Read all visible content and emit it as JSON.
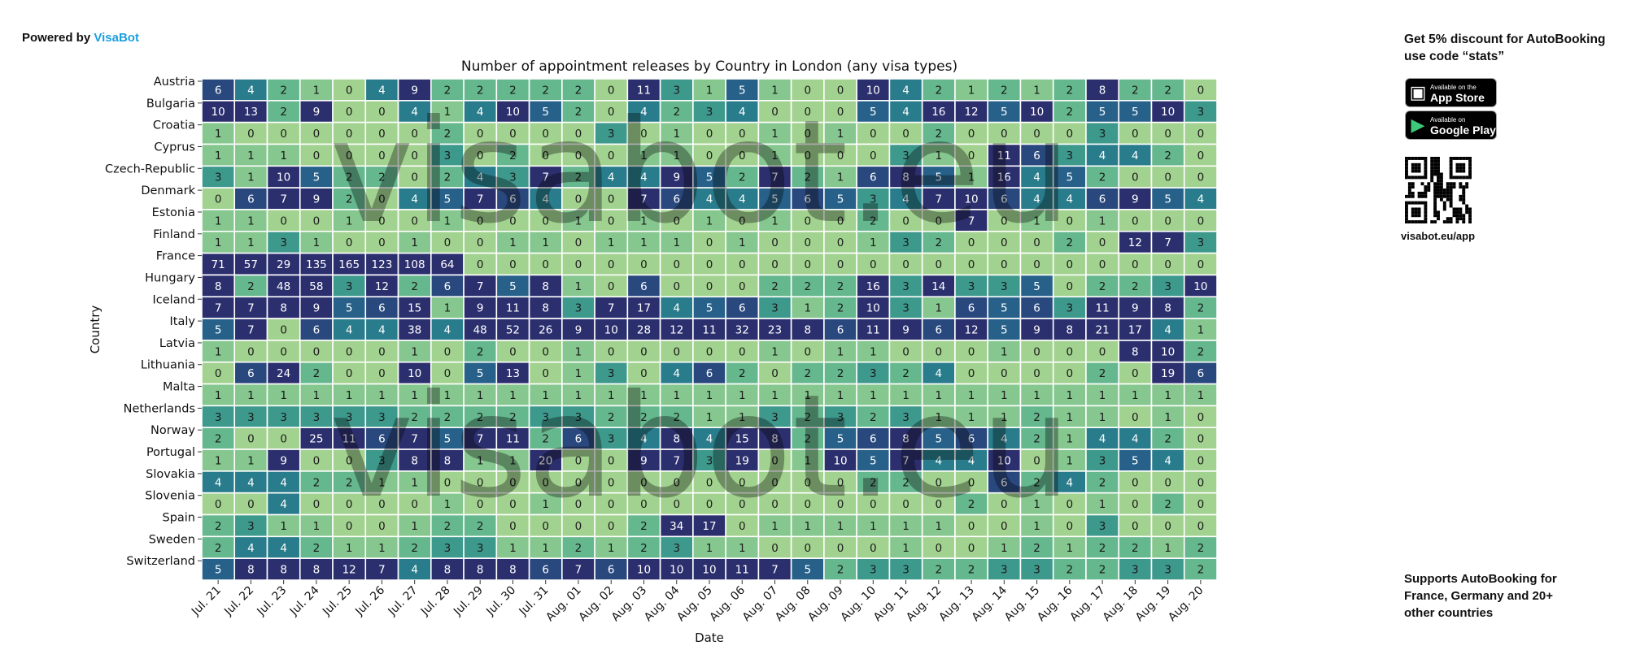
{
  "header": {
    "powered_prefix": "Powered by",
    "powered_brand": "VisaBot"
  },
  "watermark": "visabot.eu",
  "promo": {
    "line1": "Get 5% discount for AutoBooking",
    "line2": "use code “stats”",
    "appstore_small": "Available on the",
    "appstore_big": "App Store",
    "googleplay_small": "Available on",
    "googleplay_big": "Google Play",
    "qr_caption": "visabot.eu/app",
    "support_text": "Supports AutoBooking for France, Germany and 20+ other countries"
  },
  "chart_data": {
    "type": "heatmap",
    "title": "Number of appointment releases by Country in London (any visa types)",
    "xlabel": "Date",
    "ylabel": "Country",
    "colorbar": {
      "min": 0,
      "max": 7,
      "ticks": [
        0,
        1,
        2,
        3,
        4,
        5,
        6,
        7
      ]
    },
    "colors": {
      "low": "#a2d28f",
      "mid": "#2a8a8c",
      "high": "#2c2f6e"
    },
    "x": [
      "Jul. 21",
      "Jul. 22",
      "Jul. 23",
      "Jul. 24",
      "Jul. 25",
      "Jul. 26",
      "Jul. 27",
      "Jul. 28",
      "Jul. 29",
      "Jul. 30",
      "Jul. 31",
      "Aug. 01",
      "Aug. 02",
      "Aug. 03",
      "Aug. 04",
      "Aug. 05",
      "Aug. 06",
      "Aug. 07",
      "Aug. 08",
      "Aug. 09",
      "Aug. 10",
      "Aug. 11",
      "Aug. 12",
      "Aug. 13",
      "Aug. 14",
      "Aug. 15",
      "Aug. 16",
      "Aug. 17",
      "Aug. 18",
      "Aug. 19",
      "Aug. 20"
    ],
    "y": [
      "Austria",
      "Bulgaria",
      "Croatia",
      "Cyprus",
      "Czech-Republic",
      "Denmark",
      "Estonia",
      "Finland",
      "France",
      "Hungary",
      "Iceland",
      "Italy",
      "Latvia",
      "Lithuania",
      "Malta",
      "Netherlands",
      "Norway",
      "Portugal",
      "Slovakia",
      "Slovenia",
      "Spain",
      "Sweden",
      "Switzerland"
    ],
    "values": [
      [
        6,
        4,
        2,
        1,
        0,
        4,
        9,
        2,
        2,
        2,
        2,
        2,
        0,
        11,
        3,
        1,
        5,
        1,
        0,
        0,
        10,
        4,
        2,
        1,
        2,
        1,
        2,
        8,
        2,
        2,
        0
      ],
      [
        10,
        13,
        2,
        9,
        0,
        0,
        4,
        1,
        4,
        10,
        5,
        2,
        0,
        4,
        2,
        3,
        4,
        0,
        0,
        0,
        5,
        4,
        16,
        12,
        5,
        10,
        2,
        5,
        5,
        10,
        3
      ],
      [
        1,
        0,
        0,
        0,
        0,
        0,
        0,
        2,
        0,
        0,
        0,
        0,
        3,
        0,
        1,
        0,
        0,
        1,
        0,
        1,
        0,
        0,
        2,
        0,
        0,
        0,
        0,
        3,
        0,
        0,
        0
      ],
      [
        1,
        1,
        1,
        0,
        0,
        0,
        0,
        3,
        0,
        2,
        0,
        0,
        0,
        1,
        1,
        0,
        0,
        1,
        0,
        0,
        0,
        3,
        1,
        0,
        11,
        6,
        3,
        4,
        4,
        2,
        0
      ],
      [
        3,
        1,
        10,
        5,
        2,
        2,
        0,
        2,
        4,
        3,
        7,
        2,
        4,
        4,
        9,
        5,
        2,
        7,
        2,
        1,
        6,
        8,
        5,
        1,
        16,
        4,
        5,
        2,
        0,
        0,
        0
      ],
      [
        0,
        6,
        7,
        9,
        2,
        0,
        4,
        5,
        7,
        6,
        4,
        0,
        0,
        7,
        6,
        4,
        4,
        5,
        6,
        5,
        3,
        4,
        7,
        10,
        6,
        4,
        4,
        6,
        9,
        5,
        4
      ],
      [
        1,
        1,
        0,
        0,
        1,
        0,
        0,
        1,
        0,
        0,
        0,
        1,
        0,
        1,
        0,
        1,
        0,
        1,
        0,
        0,
        2,
        0,
        0,
        7,
        0,
        1,
        0,
        1,
        0,
        0,
        0
      ],
      [
        1,
        1,
        3,
        1,
        0,
        0,
        1,
        0,
        0,
        1,
        1,
        0,
        1,
        1,
        1,
        0,
        1,
        0,
        0,
        0,
        1,
        3,
        2,
        0,
        0,
        0,
        2,
        0,
        12,
        7,
        3
      ],
      [
        71,
        57,
        29,
        135,
        165,
        123,
        108,
        64,
        0,
        0,
        0,
        0,
        0,
        0,
        0,
        0,
        0,
        0,
        0,
        0,
        0,
        0,
        0,
        0,
        0,
        0,
        0,
        0,
        0,
        0,
        0
      ],
      [
        8,
        2,
        48,
        58,
        3,
        12,
        2,
        6,
        7,
        5,
        8,
        1,
        0,
        6,
        0,
        0,
        0,
        2,
        2,
        2,
        16,
        3,
        14,
        3,
        3,
        5,
        0,
        2,
        2,
        3,
        10
      ],
      [
        7,
        7,
        8,
        9,
        5,
        6,
        15,
        1,
        9,
        11,
        8,
        3,
        7,
        17,
        4,
        5,
        6,
        3,
        1,
        2,
        10,
        3,
        1,
        6,
        5,
        6,
        3,
        11,
        9,
        8,
        2
      ],
      [
        5,
        7,
        0,
        6,
        4,
        4,
        38,
        4,
        48,
        52,
        26,
        9,
        10,
        28,
        12,
        11,
        32,
        23,
        8,
        6,
        11,
        9,
        6,
        12,
        5,
        9,
        8,
        21,
        17,
        4,
        1
      ],
      [
        1,
        0,
        0,
        0,
        0,
        0,
        1,
        0,
        2,
        0,
        0,
        1,
        0,
        0,
        0,
        0,
        0,
        1,
        0,
        1,
        1,
        0,
        0,
        0,
        1,
        0,
        0,
        0,
        8,
        10,
        2
      ],
      [
        0,
        6,
        24,
        2,
        0,
        0,
        10,
        0,
        5,
        13,
        0,
        1,
        3,
        0,
        4,
        6,
        2,
        0,
        2,
        2,
        3,
        2,
        4,
        0,
        0,
        0,
        0,
        2,
        0,
        19,
        6
      ],
      [
        1,
        1,
        1,
        1,
        1,
        1,
        1,
        1,
        1,
        1,
        1,
        1,
        1,
        1,
        1,
        1,
        1,
        1,
        1,
        1,
        1,
        1,
        1,
        1,
        1,
        1,
        1,
        1,
        1,
        1,
        1
      ],
      [
        3,
        3,
        3,
        3,
        3,
        3,
        2,
        2,
        2,
        2,
        3,
        3,
        2,
        2,
        2,
        1,
        1,
        3,
        2,
        3,
        2,
        3,
        1,
        1,
        1,
        2,
        1,
        1,
        0,
        1,
        0
      ],
      [
        2,
        0,
        0,
        25,
        11,
        6,
        7,
        5,
        7,
        11,
        2,
        6,
        3,
        4,
        8,
        4,
        15,
        8,
        2,
        5,
        6,
        8,
        5,
        6,
        4,
        2,
        1,
        4,
        4,
        2,
        0
      ],
      [
        1,
        1,
        9,
        0,
        0,
        3,
        8,
        8,
        1,
        1,
        20,
        0,
        0,
        9,
        7,
        3,
        19,
        0,
        1,
        10,
        5,
        7,
        4,
        4,
        10,
        0,
        1,
        3,
        5,
        4,
        0
      ],
      [
        4,
        4,
        4,
        2,
        2,
        1,
        1,
        0,
        0,
        0,
        0,
        0,
        0,
        0,
        0,
        0,
        0,
        0,
        0,
        0,
        2,
        2,
        0,
        0,
        6,
        2,
        4,
        2,
        0,
        0,
        0
      ],
      [
        0,
        0,
        4,
        0,
        0,
        0,
        0,
        1,
        0,
        0,
        1,
        0,
        0,
        0,
        0,
        0,
        0,
        0,
        0,
        0,
        0,
        0,
        0,
        2,
        0,
        1,
        0,
        1,
        0,
        2,
        0
      ],
      [
        2,
        3,
        1,
        1,
        0,
        0,
        1,
        2,
        2,
        0,
        0,
        0,
        0,
        2,
        34,
        17,
        0,
        1,
        1,
        1,
        1,
        1,
        1,
        0,
        0,
        1,
        0,
        3,
        0,
        0,
        0
      ],
      [
        2,
        4,
        4,
        2,
        1,
        1,
        2,
        3,
        3,
        1,
        1,
        2,
        1,
        2,
        3,
        1,
        1,
        0,
        0,
        0,
        0,
        1,
        0,
        0,
        1,
        2,
        1,
        2,
        2,
        1,
        2
      ],
      [
        5,
        8,
        8,
        8,
        12,
        7,
        4,
        8,
        8,
        8,
        6,
        7,
        6,
        10,
        10,
        10,
        11,
        7,
        5,
        2,
        3,
        3,
        2,
        2,
        3,
        3,
        2,
        2,
        3,
        3,
        2
      ]
    ]
  }
}
